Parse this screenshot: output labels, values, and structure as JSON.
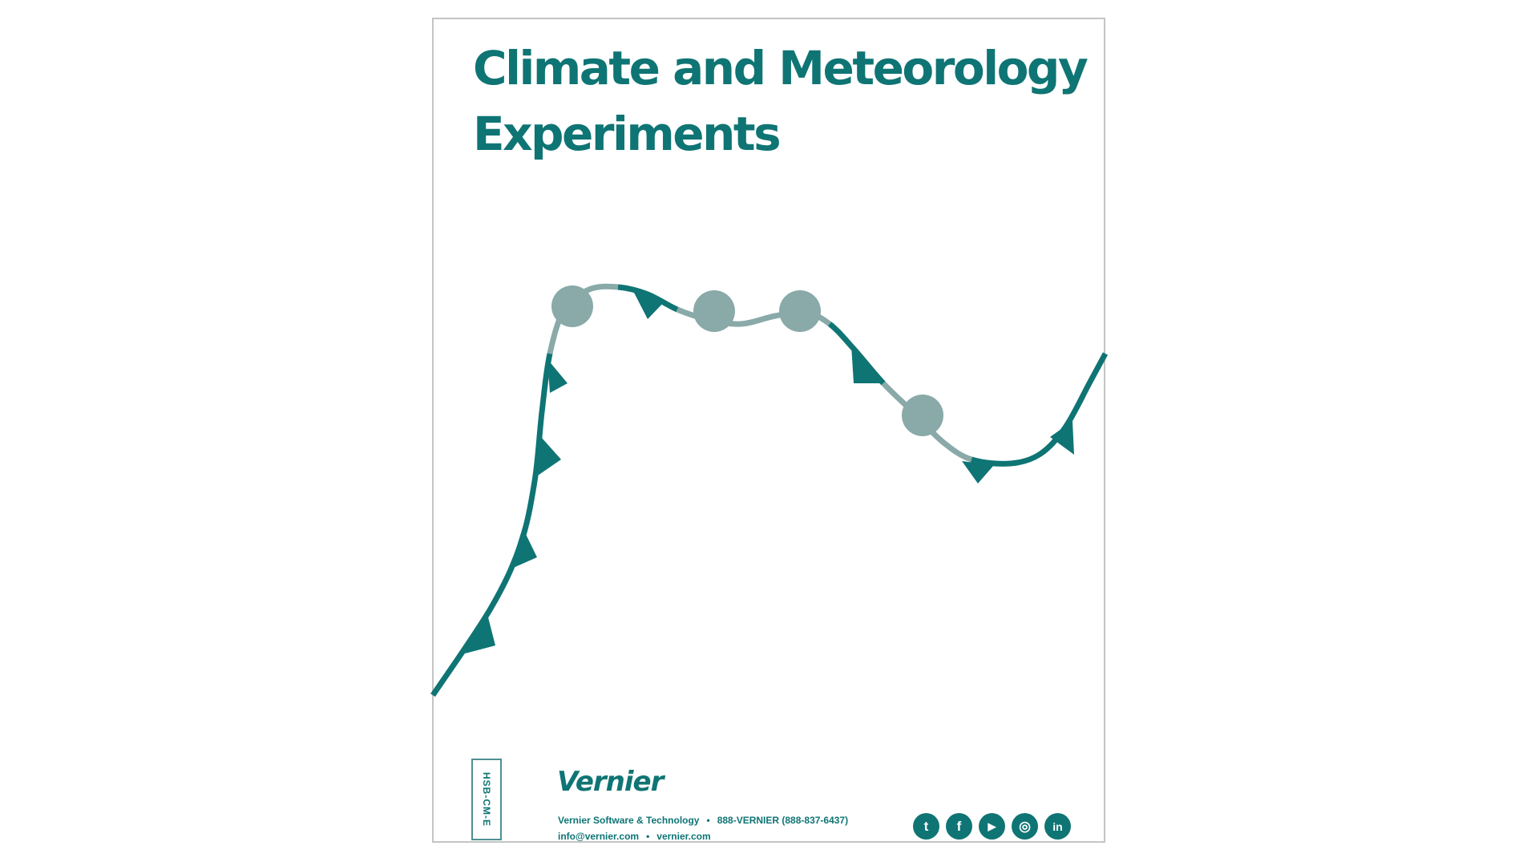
{
  "document": {
    "title_lines": [
      "Climate and Meteorology",
      "Experiments"
    ],
    "product_code": "HSB-CM-E",
    "brand": "Vernier",
    "contact": {
      "company": "Vernier Software & Technology",
      "phone": "888-VERNIER (888-837-6437)",
      "email": "info@vernier.com",
      "website": "vernier.com",
      "separator": "•"
    },
    "social_icons": [
      {
        "name": "twitter-icon",
        "glyph": "t"
      },
      {
        "name": "facebook-icon",
        "glyph": "f"
      },
      {
        "name": "youtube-icon",
        "glyph": "▶"
      },
      {
        "name": "instagram-icon",
        "glyph": "◎"
      },
      {
        "name": "linkedin-icon",
        "glyph": "in"
      }
    ]
  },
  "colors": {
    "teal": "#0f7474",
    "grey_teal": "#8aa9a9",
    "border": "#c4c4c4"
  }
}
